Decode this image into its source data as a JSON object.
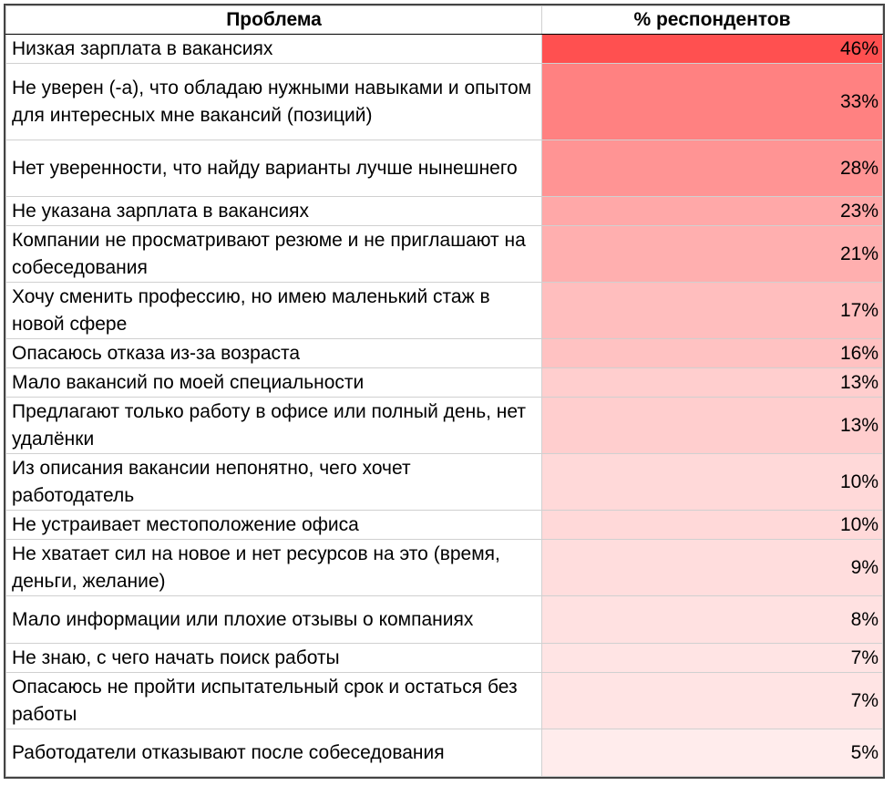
{
  "chart_data": {
    "type": "table",
    "columns": [
      "Проблема",
      "% респондентов"
    ],
    "color_scale": {
      "min": "#ffffff",
      "max": "#ff5050"
    },
    "rows": [
      {
        "label": "Низкая зарплата в вакансиях",
        "value": 46,
        "display": "46%"
      },
      {
        "label": "Не уверен (-а), что обладаю нужными навыками и опытом для интересных мне вакансий (позиций)",
        "value": 33,
        "display": "33%"
      },
      {
        "label": "Нет уверенности, что найду варианты лучше нынешнего",
        "value": 28,
        "display": "28%"
      },
      {
        "label": "Не указана зарплата в вакансиях",
        "value": 23,
        "display": "23%"
      },
      {
        "label": "Компании не просматривают резюме и не приглашают на собеседования",
        "value": 21,
        "display": "21%"
      },
      {
        "label": "Хочу сменить профессию, но имею маленький стаж в новой сфере",
        "value": 17,
        "display": "17%"
      },
      {
        "label": "Опасаюсь отказа из-за возраста",
        "value": 16,
        "display": "16%"
      },
      {
        "label": "Мало вакансий по моей специальности",
        "value": 13,
        "display": "13%"
      },
      {
        "label": "Предлагают только работу в офисе или полный день, нет удалёнки",
        "value": 13,
        "display": "13%"
      },
      {
        "label": "Из описания вакансии непонятно, чего хочет работодатель",
        "value": 10,
        "display": "10%"
      },
      {
        "label": "Не устраивает местоположение офиса",
        "value": 10,
        "display": "10%"
      },
      {
        "label": "Не хватает сил на новое и нет ресурсов на это (время, деньги, желание)",
        "value": 9,
        "display": "9%"
      },
      {
        "label": "Мало информации или плохие отзывы о компаниях",
        "value": 8,
        "display": "8%"
      },
      {
        "label": "Не знаю, с чего начать поиск работы",
        "value": 7,
        "display": "7%"
      },
      {
        "label": "Опасаюсь не пройти испытательный срок и остаться без работы",
        "value": 7,
        "display": "7%"
      },
      {
        "label": "Работодатели отказывают после собеседования",
        "value": 5,
        "display": "5%"
      }
    ]
  }
}
